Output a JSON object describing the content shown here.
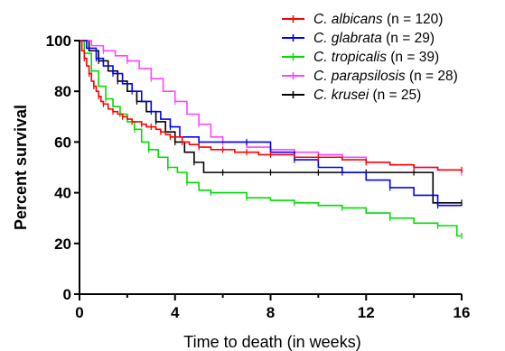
{
  "chart_data": {
    "type": "line",
    "title": "",
    "xlabel": "Time to death (in weeks)",
    "ylabel": "Percent survival",
    "xlim": [
      0,
      16
    ],
    "ylim": [
      0,
      100
    ],
    "xticks": [
      "0",
      "4",
      "8",
      "12",
      "16"
    ],
    "yticks": [
      "0",
      "20",
      "40",
      "60",
      "80",
      "100"
    ],
    "grid": false,
    "legend_position": "top-right",
    "series": [
      {
        "name": "C. albicans",
        "n_label": "(n = 120)",
        "color": "#ff0000",
        "x": [
          0,
          0.1,
          0.2,
          0.3,
          0.4,
          0.5,
          0.6,
          0.7,
          0.8,
          0.9,
          1.0,
          1.2,
          1.4,
          1.6,
          1.8,
          2.0,
          2.2,
          2.4,
          2.6,
          2.8,
          3.0,
          3.2,
          3.4,
          3.6,
          3.8,
          4.0,
          4.3,
          4.6,
          5.0,
          5.5,
          6.0,
          6.5,
          7.0,
          7.5,
          8.0,
          9.0,
          10.0,
          11.0,
          12.0,
          13.0,
          14.0,
          15.0,
          16.0
        ],
        "y": [
          100,
          96,
          93,
          90,
          87,
          84,
          82,
          80,
          78,
          76,
          75,
          73,
          72,
          71,
          70,
          69,
          68,
          68,
          67,
          66,
          66,
          65,
          64,
          63,
          62,
          62,
          60,
          59,
          58,
          57,
          57,
          56,
          56,
          55,
          55,
          54,
          54,
          53,
          52,
          51,
          50,
          49,
          49
        ]
      },
      {
        "name": "C. glabrata",
        "n_label": "(n = 29)",
        "color": "#0000ff",
        "x": [
          0,
          0.3,
          0.7,
          1.0,
          1.4,
          1.8,
          2.2,
          2.6,
          3.0,
          3.4,
          3.8,
          4.2,
          5.0,
          6.0,
          7.0,
          8.0,
          9.0,
          10.0,
          11.0,
          12.0,
          13.0,
          14.0,
          15.0,
          16.0
        ],
        "y": [
          100,
          97,
          93,
          90,
          87,
          83,
          80,
          76,
          72,
          69,
          66,
          62,
          60,
          60,
          60,
          56,
          53,
          50,
          48,
          45,
          42,
          39,
          35,
          35
        ]
      },
      {
        "name": "C. tropicalis",
        "n_label": "(n = 39)",
        "color": "#00dd00",
        "x": [
          0,
          0.2,
          0.5,
          0.8,
          1.1,
          1.4,
          1.7,
          2.0,
          2.3,
          2.6,
          2.9,
          3.3,
          3.7,
          4.1,
          4.5,
          5.0,
          5.5,
          6.0,
          7.0,
          8.0,
          9.0,
          10.0,
          11.0,
          12.0,
          13.0,
          14.0,
          15.0,
          15.8,
          16.0
        ],
        "y": [
          100,
          95,
          88,
          82,
          77,
          74,
          71,
          68,
          65,
          60,
          57,
          54,
          50,
          48,
          44,
          41,
          40,
          40,
          38,
          37,
          36,
          35,
          34,
          32,
          30,
          28,
          27,
          23,
          23
        ]
      },
      {
        "name": "C. parapsilosis",
        "n_label": "(n = 28)",
        "color": "#ff44ff",
        "x": [
          0,
          0.5,
          1.0,
          1.5,
          2.0,
          2.5,
          3.0,
          3.5,
          4.0,
          4.5,
          5.0,
          5.5,
          6.0,
          7.0,
          8.0,
          9.0,
          10.0,
          11.0,
          12.0,
          13.0,
          14.0,
          15.0,
          16.0
        ],
        "y": [
          100,
          98,
          96,
          94,
          92,
          89,
          85,
          80,
          76,
          71,
          67,
          62,
          60,
          58,
          57,
          56,
          55,
          54,
          52,
          51,
          50,
          49,
          48
        ]
      },
      {
        "name": "C. krusei",
        "n_label": "(n = 25)",
        "color": "#000000",
        "x": [
          0,
          0.4,
          0.8,
          1.2,
          1.6,
          2.0,
          2.4,
          2.8,
          3.2,
          3.6,
          4.0,
          4.4,
          4.8,
          5.2,
          6.0,
          7.0,
          8.0,
          9.0,
          10.0,
          11.0,
          12.0,
          13.0,
          14.0,
          14.8,
          16.0
        ],
        "y": [
          100,
          96,
          92,
          88,
          84,
          80,
          76,
          72,
          68,
          64,
          60,
          56,
          52,
          48,
          48,
          48,
          48,
          48,
          48,
          48,
          48,
          48,
          48,
          36,
          36
        ]
      }
    ]
  }
}
